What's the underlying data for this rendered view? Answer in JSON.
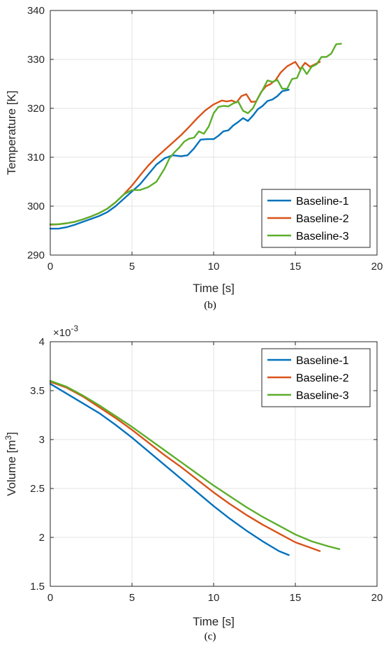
{
  "colors": {
    "Baseline-1": "#0072BD",
    "Baseline-2": "#D95319",
    "Baseline-3": "#5CAE2A"
  },
  "chart_data": [
    {
      "type": "line",
      "caption": "(b)",
      "xlabel": "Time [s]",
      "ylabel": "Temperature [K]",
      "xlim": [
        0,
        20
      ],
      "ylim": [
        290,
        340
      ],
      "xticks": [
        0,
        5,
        10,
        15,
        20
      ],
      "yticks": [
        290,
        300,
        310,
        320,
        330,
        340
      ],
      "grid": true,
      "legend": "bottom-right",
      "series": [
        {
          "name": "Baseline-1",
          "x": [
            0,
            0.5,
            1,
            1.5,
            2,
            2.5,
            3,
            3.5,
            4,
            4.5,
            5,
            5.5,
            6,
            6.5,
            7,
            7.5,
            8,
            8.4,
            8.8,
            9.2,
            9.6,
            10,
            10.3,
            10.6,
            10.9,
            11.2,
            11.5,
            11.8,
            12.1,
            12.4,
            12.7,
            13,
            13.3,
            13.6,
            13.9,
            14.2,
            14.6
          ],
          "values": [
            295.4,
            295.4,
            295.7,
            296.2,
            296.8,
            297.4,
            298,
            298.8,
            300,
            301.5,
            303,
            304.5,
            306.5,
            308.5,
            309.8,
            310.4,
            310.2,
            310.4,
            311.8,
            313.6,
            313.7,
            313.7,
            314.4,
            315.3,
            315.5,
            316.5,
            317.2,
            318,
            317.4,
            318.5,
            319.8,
            320.5,
            321.5,
            321.8,
            322.5,
            323.5,
            323.8
          ]
        },
        {
          "name": "Baseline-2",
          "x": [
            0,
            0.5,
            1,
            1.5,
            2,
            2.5,
            3,
            3.5,
            4,
            4.5,
            5,
            5.5,
            6,
            6.5,
            7,
            7.5,
            8,
            8.5,
            9,
            9.5,
            10,
            10.5,
            10.8,
            11.1,
            11.4,
            11.7,
            12,
            12.3,
            12.6,
            12.9,
            13.2,
            13.5,
            13.8,
            14.1,
            14.5,
            15,
            15.3,
            15.6,
            15.9,
            16.2,
            16.5
          ],
          "values": [
            296.2,
            296.3,
            296.5,
            296.8,
            297.3,
            297.9,
            298.6,
            299.5,
            300.8,
            302.4,
            304.2,
            306.3,
            308.3,
            310,
            311.5,
            313,
            314.5,
            316.2,
            318,
            319.6,
            320.8,
            321.6,
            321.4,
            321.6,
            321.2,
            322.5,
            322.9,
            321.3,
            321.4,
            323.3,
            324.5,
            325,
            325.8,
            327.3,
            328.6,
            329.5,
            328,
            329.3,
            328.5,
            329,
            329.5
          ]
        },
        {
          "name": "Baseline-3",
          "x": [
            0,
            0.5,
            1,
            1.5,
            2,
            2.5,
            3,
            3.5,
            4,
            4.5,
            5,
            5.5,
            6,
            6.5,
            7,
            7.3,
            7.6,
            7.9,
            8.2,
            8.5,
            8.8,
            9.1,
            9.4,
            9.7,
            10,
            10.3,
            10.6,
            10.9,
            11.2,
            11.5,
            11.8,
            12.1,
            12.4,
            12.7,
            13,
            13.3,
            13.6,
            13.9,
            14.2,
            14.5,
            14.8,
            15.1,
            15.4,
            15.7,
            16,
            16.3,
            16.6,
            16.9,
            17.2,
            17.5,
            17.8
          ],
          "values": [
            296.3,
            296.3,
            296.5,
            296.8,
            297.3,
            297.9,
            298.6,
            299.5,
            300.8,
            302.4,
            303.3,
            303.3,
            303.9,
            305,
            307.7,
            309.8,
            311,
            312,
            313.2,
            313.8,
            314,
            315.3,
            314.8,
            316.3,
            319,
            320.3,
            320.5,
            320.4,
            321,
            321.4,
            319.5,
            319,
            320,
            322,
            323.8,
            325.7,
            325.4,
            325.8,
            324,
            324,
            326,
            326.2,
            328.5,
            327,
            328.5,
            329,
            330.5,
            330.5,
            331.2,
            333.1,
            333.2
          ]
        }
      ]
    },
    {
      "type": "line",
      "caption": "(c)",
      "xlabel": "Time [s]",
      "ylabel": "Volume [m",
      "ylabel_sup": "3",
      "ylabel_tail": "]",
      "exponent_base": "×10",
      "exponent_power": "-3",
      "xlim": [
        0,
        20
      ],
      "ylim": [
        1.5,
        4
      ],
      "xticks": [
        0,
        5,
        10,
        15,
        20
      ],
      "yticks": [
        1.5,
        2,
        2.5,
        3,
        3.5,
        4
      ],
      "grid": true,
      "legend": "top-right",
      "series": [
        {
          "name": "Baseline-1",
          "x": [
            0,
            1,
            2,
            3,
            4,
            5,
            6,
            7,
            8,
            9,
            10,
            11,
            12,
            13,
            14,
            14.6
          ],
          "values": [
            3.57,
            3.47,
            3.37,
            3.27,
            3.15,
            3.02,
            2.88,
            2.74,
            2.6,
            2.46,
            2.32,
            2.19,
            2.07,
            1.96,
            1.86,
            1.82
          ]
        },
        {
          "name": "Baseline-2",
          "x": [
            0,
            1,
            2,
            3,
            4,
            5,
            6,
            7,
            8,
            9,
            10,
            11,
            12,
            13,
            14,
            15,
            16,
            16.5
          ],
          "values": [
            3.59,
            3.53,
            3.44,
            3.33,
            3.22,
            3.1,
            2.97,
            2.84,
            2.72,
            2.59,
            2.46,
            2.34,
            2.23,
            2.13,
            2.04,
            1.95,
            1.89,
            1.86
          ]
        },
        {
          "name": "Baseline-3",
          "x": [
            0,
            1,
            2,
            3,
            4,
            5,
            6,
            7,
            8,
            9,
            10,
            11,
            12,
            13,
            14,
            15,
            16,
            17,
            17.7
          ],
          "values": [
            3.6,
            3.54,
            3.45,
            3.35,
            3.24,
            3.13,
            3.01,
            2.89,
            2.77,
            2.65,
            2.53,
            2.42,
            2.31,
            2.21,
            2.12,
            2.03,
            1.96,
            1.91,
            1.88
          ]
        }
      ]
    }
  ]
}
